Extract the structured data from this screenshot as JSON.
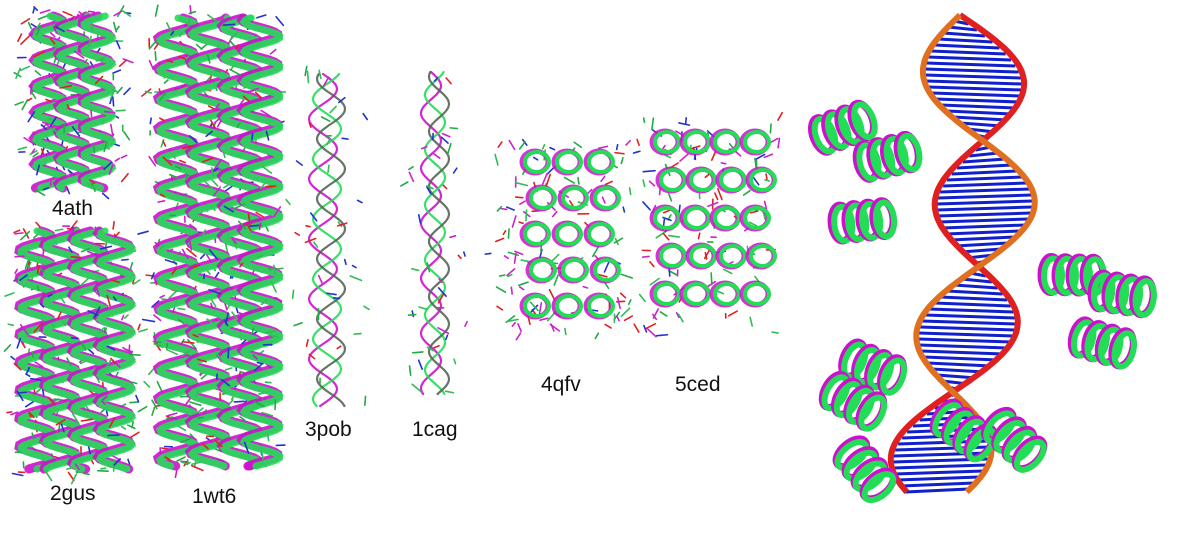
{
  "colors": {
    "model_a": "#22dd55",
    "model_b": "#cc11cc",
    "dna_backbone": "#e02020",
    "dna_base": "#1020cc",
    "dna_accent": "#e07020"
  },
  "labels": {
    "s1": "4ath",
    "s2": "2gus",
    "s3": "1wt6",
    "s4": "3pob",
    "s5": "1cag",
    "s6": "4qfv",
    "s7": "5ced"
  }
}
